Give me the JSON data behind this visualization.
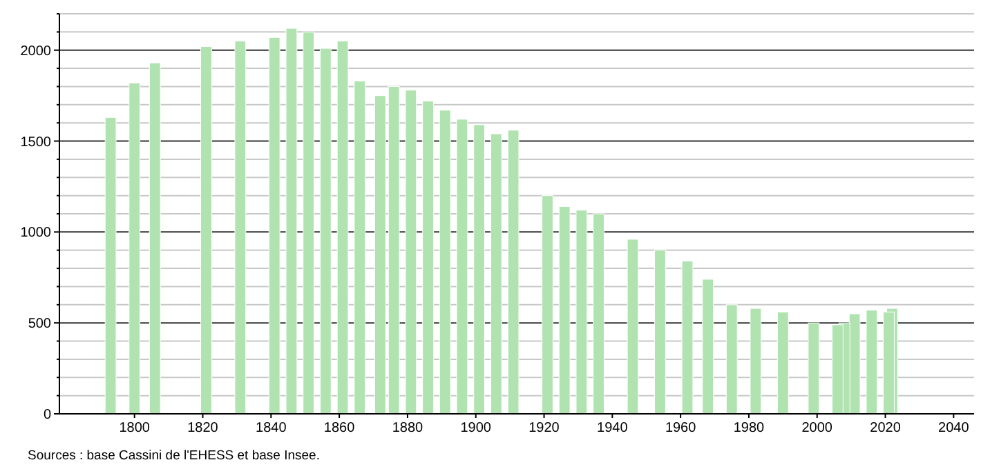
{
  "chart_data": {
    "type": "bar",
    "color": "#b0e3b0",
    "x": [
      1793,
      1800,
      1806,
      1821,
      1831,
      1841,
      1846,
      1851,
      1856,
      1861,
      1866,
      1872,
      1876,
      1881,
      1886,
      1891,
      1896,
      1901,
      1906,
      1911,
      1921,
      1926,
      1931,
      1936,
      1946,
      1954,
      1962,
      1968,
      1975,
      1982,
      1990,
      1999,
      2006,
      2008,
      2011,
      2016,
      2021,
      2022
    ],
    "values": [
      1630,
      1820,
      1930,
      2020,
      2050,
      2070,
      2120,
      2100,
      2010,
      2050,
      1830,
      1750,
      1800,
      1780,
      1720,
      1670,
      1620,
      1590,
      1540,
      1560,
      1200,
      1140,
      1120,
      1100,
      960,
      900,
      840,
      740,
      600,
      580,
      560,
      500,
      490,
      500,
      550,
      570,
      560,
      580
    ],
    "xlim": [
      1778,
      2046
    ],
    "xticks": [
      1800,
      1820,
      1840,
      1860,
      1880,
      1900,
      1920,
      1940,
      1960,
      1980,
      2000,
      2020,
      2040
    ],
    "ylim": [
      0,
      2200
    ],
    "yticks": [
      0,
      {
        "value": 100,
        "label": null
      },
      {
        "value": 200,
        "label": null
      },
      {
        "value": 300,
        "label": null
      },
      {
        "value": 400,
        "label": null
      },
      500,
      {
        "value": 600,
        "label": null
      },
      {
        "value": 700,
        "label": null
      },
      {
        "value": 800,
        "label": null
      },
      {
        "value": 900,
        "label": null
      },
      1000,
      {
        "value": 1100,
        "label": null
      },
      {
        "value": 1200,
        "label": null
      },
      {
        "value": 1300,
        "label": null
      },
      {
        "value": 1400,
        "label": null
      },
      1500,
      {
        "value": 1600,
        "label": null
      },
      {
        "value": 1700,
        "label": null
      },
      {
        "value": 1800,
        "label": null
      },
      {
        "value": 1900,
        "label": null
      },
      2000,
      {
        "value": 2100,
        "label": null
      },
      {
        "value": 2200,
        "label": null
      }
    ],
    "grid": "y",
    "annotations": [
      "Sources : base Cassini de l'EHESS et base Insee."
    ]
  }
}
